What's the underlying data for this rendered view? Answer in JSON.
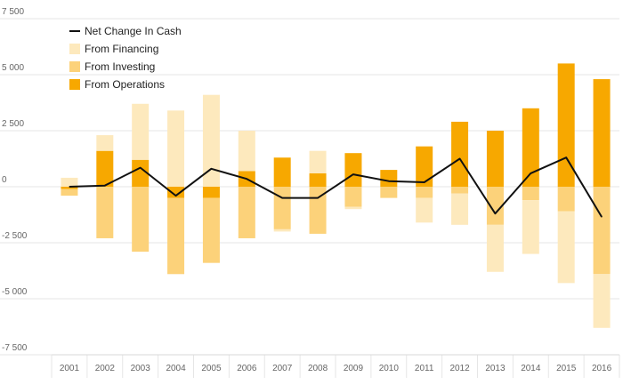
{
  "chart_data": {
    "type": "bar",
    "stacked": true,
    "title": "",
    "xlabel": "",
    "ylabel": "",
    "ylim": [
      -7500,
      7500
    ],
    "yticks": [
      7500,
      5000,
      2500,
      0,
      -2500,
      -5000,
      -7500
    ],
    "ytick_labels": [
      "7 500",
      "5 000",
      "2 500",
      "0",
      "-2 500",
      "-5 000",
      "-7 500"
    ],
    "categories": [
      "2001",
      "2002",
      "2003",
      "2004",
      "2005",
      "2006",
      "2007",
      "2008",
      "2009",
      "2010",
      "2011",
      "2012",
      "2013",
      "2014",
      "2015",
      "2016"
    ],
    "series": [
      {
        "name": "From Operations",
        "kind": "bar",
        "color": "#f7a800",
        "values": [
          -100,
          1600,
          1200,
          -500,
          -500,
          700,
          1300,
          600,
          1500,
          750,
          1800,
          2900,
          2500,
          3500,
          5500,
          4800
        ]
      },
      {
        "name": "From Investing",
        "kind": "bar",
        "color": "#fcd27a",
        "values": [
          -300,
          -2300,
          -2900,
          -3400,
          -2900,
          -2300,
          -1900,
          -2100,
          -900,
          -500,
          -500,
          -300,
          -1700,
          -600,
          -1100,
          -3900
        ]
      },
      {
        "name": "From Financing",
        "kind": "bar",
        "color": "#fde9bd",
        "values": [
          400,
          700,
          2500,
          3400,
          4100,
          1800,
          -100,
          1000,
          -100,
          0,
          -1100,
          -1400,
          -2100,
          -2400,
          -3200,
          -2400
        ]
      },
      {
        "name": "Net Change In Cash",
        "kind": "line",
        "color": "#111111",
        "values": [
          0,
          50,
          850,
          -400,
          800,
          350,
          -500,
          -500,
          550,
          250,
          200,
          1250,
          -1200,
          600,
          1300,
          -1350
        ]
      }
    ],
    "legend": {
      "position": "top-left",
      "entries": [
        "Net Change In Cash",
        "From Financing",
        "From Investing",
        "From Operations"
      ]
    }
  }
}
